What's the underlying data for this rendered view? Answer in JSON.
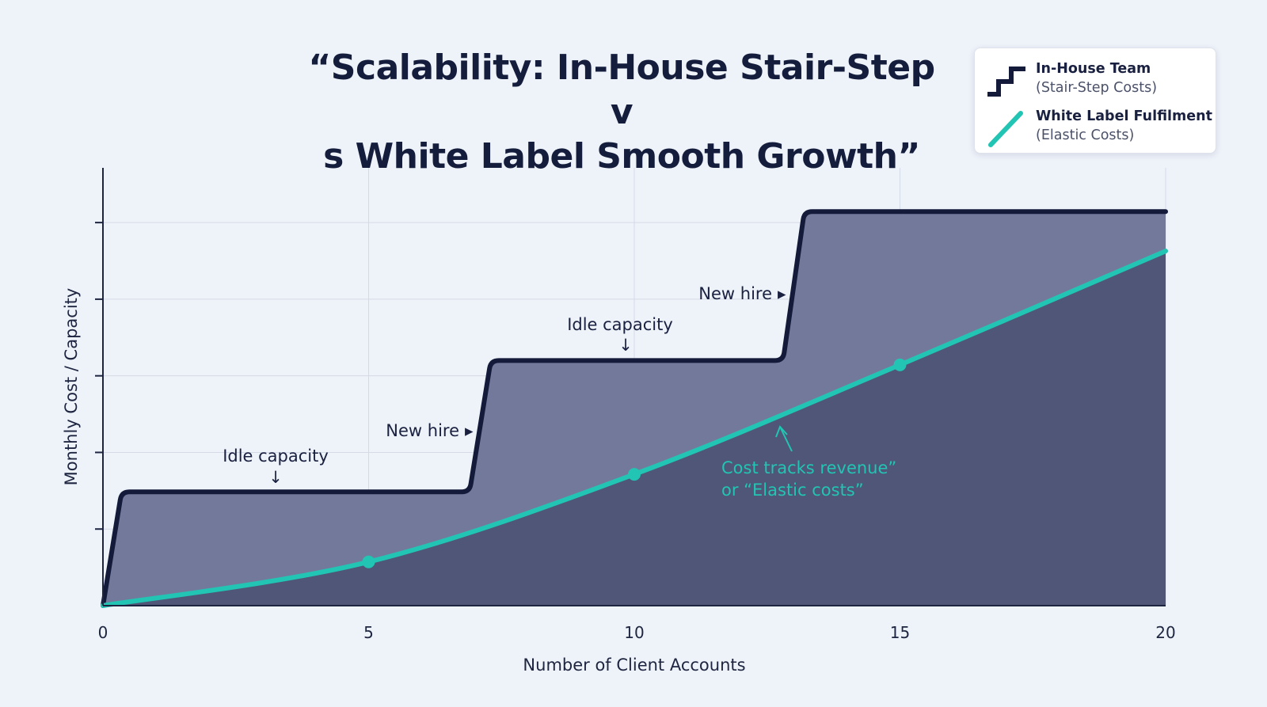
{
  "chart_data": {
    "type": "line",
    "title_line1": "“Scalability: In-House Stair-Step v",
    "title_line2": "s White Label Smooth Growth”",
    "xlabel": "Number of Client Accounts",
    "ylabel": "Monthly Cost / Capacity",
    "xlim": [
      0,
      20
    ],
    "ylim": [
      0,
      100
    ],
    "x_ticks": [
      0,
      5,
      10,
      15,
      20
    ],
    "y_ticks": [
      17.5,
      35,
      52.5,
      70,
      87.5
    ],
    "grid": true,
    "legend_position": "top-right",
    "legend": [
      {
        "line1": "In-House Team",
        "line2": "(Stair-Step Costs)",
        "color": "#131a3a",
        "icon": "stair-step-icon"
      },
      {
        "line1": "White Label Fulfilment",
        "line2": "(Elastic Costs)",
        "color": "#22c4b3",
        "icon": "diagonal-line-icon"
      }
    ],
    "series": [
      {
        "key": "in_house",
        "x": [
          0,
          0.35,
          6.9,
          7.3,
          12.8,
          13.2,
          20
        ],
        "y": [
          0,
          26,
          26,
          56,
          56,
          90,
          90
        ],
        "color": "#131a3a",
        "fill": "#73799a"
      },
      {
        "key": "white_label",
        "x": [
          0,
          5,
          10,
          15,
          20
        ],
        "y": [
          0,
          10,
          30,
          55,
          81
        ],
        "color": "#22c4b3",
        "fill": "#4f5677",
        "markers": [
          5,
          10,
          15
        ]
      }
    ],
    "annotations": [
      {
        "text": "Idle capacity",
        "arrow": "↓",
        "x": 3.2,
        "y": 26,
        "color": "#1a2140"
      },
      {
        "text": "New hire",
        "arrow": "▸",
        "x": 6.9,
        "y": 40,
        "color": "#1a2140"
      },
      {
        "text": "Idle capacity",
        "arrow": "↓",
        "x": 9.8,
        "y": 56,
        "color": "#1a2140"
      },
      {
        "text": "New hire",
        "arrow": "▸",
        "x": 12.6,
        "y": 71,
        "color": "#1a2140"
      },
      {
        "line1": "Cost tracks revenue”",
        "line2": "or “Elastic costs”",
        "x": 13.0,
        "y": 39,
        "color": "#22c4b3"
      }
    ]
  }
}
